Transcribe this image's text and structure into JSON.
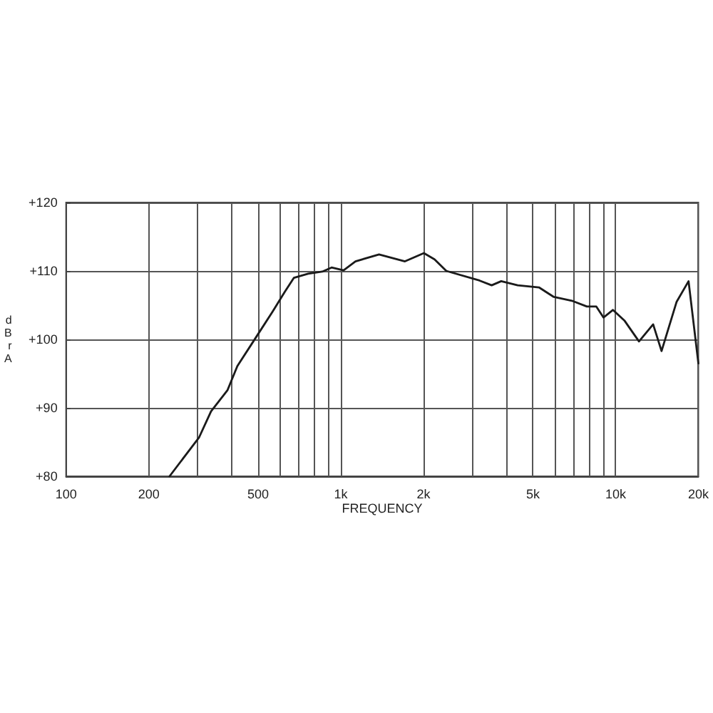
{
  "chart_data": {
    "type": "line",
    "xlabel": "FREQUENCY",
    "ylabel": "dBrA",
    "log": "x",
    "grid": true,
    "marker": "none",
    "line_style": "solid",
    "x": [
      238,
      305,
      337,
      387,
      420,
      491,
      565,
      624,
      675,
      760,
      856,
      925,
      1023,
      1130,
      1377,
      1711,
      2005,
      2192,
      2420,
      3195,
      3538,
      3833,
      4400,
      5257,
      5957,
      6978,
      7856,
      8505,
      9030,
      9780,
      10790,
      12160,
      13690,
      14690,
      16670,
      18420,
      20000
    ],
    "series": [
      {
        "color": "#1a1a1a",
        "values": [
          80,
          85.7,
          89.5,
          92.6,
          96.1,
          100.3,
          104.1,
          106.9,
          109,
          109.6,
          109.9,
          110.5,
          110.1,
          111.4,
          112.4,
          111.4,
          112.6,
          111.7,
          110,
          108.6,
          107.9,
          108.5,
          107.9,
          107.6,
          106.2,
          105.6,
          104.8,
          104.8,
          103.2,
          104.3,
          102.7,
          99.7,
          102.2,
          98.3,
          105.5,
          108.5,
          96.5
        ]
      }
    ],
    "xlim": [
      100,
      20000
    ],
    "xticks": [
      100,
      {
        "value": 200,
        "label": "200"
      },
      {
        "value": 300,
        "label": null
      },
      {
        "value": 400,
        "label": null
      },
      500,
      {
        "value": 600,
        "label": null
      },
      {
        "value": 700,
        "label": null
      },
      {
        "value": 800,
        "label": null
      },
      {
        "value": 900,
        "label": null
      },
      {
        "value": 1000,
        "label": "1k"
      },
      {
        "value": 2000,
        "label": "2k"
      },
      {
        "value": 3000,
        "label": null
      },
      {
        "value": 4000,
        "label": null
      },
      {
        "value": 5000,
        "label": "5k"
      },
      {
        "value": 6000,
        "label": null
      },
      {
        "value": 7000,
        "label": null
      },
      {
        "value": 8000,
        "label": null
      },
      {
        "value": 9000,
        "label": null
      },
      {
        "value": 10000,
        "label": "10k"
      },
      {
        "value": 20000,
        "label": "20k"
      }
    ],
    "ylim": [
      80,
      120
    ],
    "yticks": [
      {
        "value": 80,
        "label": "+80"
      },
      {
        "value": 90,
        "label": "+90"
      },
      {
        "value": 100,
        "label": "+100"
      },
      {
        "value": 110,
        "label": "+110"
      },
      {
        "value": 120,
        "label": "+120"
      }
    ]
  }
}
